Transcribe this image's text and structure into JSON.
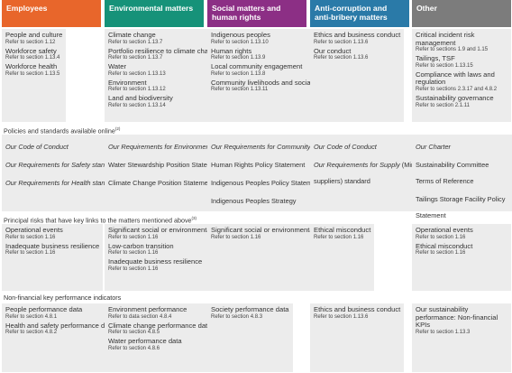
{
  "headers": [
    "Employees",
    "Environmental matters",
    "Social matters and human rights",
    "Anti-corruption and anti-bribery matters",
    "Other"
  ],
  "matters": [
    [
      {
        "title": "People and culture",
        "ref": "Refer to section 1.12"
      },
      {
        "title": "Workforce safety",
        "ref": "Refer to section 1.13.4"
      },
      {
        "title": "Workforce health",
        "ref": "Refer to section 1.13.5"
      }
    ],
    [
      {
        "title": "Climate change",
        "ref": "Refer to section 1.13.7"
      },
      {
        "title": "Portfolio resilience to climate change",
        "ref": "Refer to section 1.13.7"
      },
      {
        "title": "Water",
        "ref": "Refer to section 1.13.13"
      },
      {
        "title": "Environment",
        "ref": "Refer to section 1.13.12"
      },
      {
        "title": "Land and biodiversity",
        "ref": "Refer to section 1.13.14"
      }
    ],
    [
      {
        "title": "Indigenous peoples",
        "ref": "Refer to section 1.13.10"
      },
      {
        "title": "Human rights",
        "ref": "Refer to section 1.13.9"
      },
      {
        "title": "Local community engagement",
        "ref": "Refer to section 1.13.8"
      },
      {
        "title": "Community livelihoods and social investment",
        "ref": "Refer to section 1.13.11"
      }
    ],
    [
      {
        "title": "Ethics and business conduct",
        "ref": "Refer to section 1.13.6"
      },
      {
        "title": "Our conduct",
        "ref": "Refer to section 1.13.6"
      }
    ],
    [
      {
        "title": "Critical incident risk management",
        "ref": "Refer to sections 1.9 and 1.15"
      },
      {
        "title": "Tailings, TSF",
        "ref": "Refer to section 1.13.15"
      },
      {
        "title": "Compliance with laws and regulation",
        "ref": "Refer to sections 2.3.17 and 4.8.2"
      },
      {
        "title": "Sustainability governance",
        "ref": "Refer to section 2.1.11"
      }
    ]
  ],
  "section_policies": "Policies and standards available online",
  "section_policies_sup": "(2)",
  "policies": [
    [
      {
        "text": "Our Code of Conduct",
        "italic": true
      },
      {
        "text": "Our Requirements for Safety standard",
        "italic": true
      },
      {
        "text": "Our Requirements for Health standard",
        "italic": true
      }
    ],
    [
      {
        "text": "Our Requirements for Environment and Climate Change standard",
        "italic": true
      },
      {
        "text": "Water Stewardship Position Statement",
        "italic": false
      },
      {
        "text": "Climate Change Position Statement",
        "italic": false
      }
    ],
    [
      {
        "text": "Our Requirements for Community",
        "italic": true
      },
      {
        "text": "Human Rights Policy Statement",
        "italic": false
      },
      {
        "text": "Indigenous Peoples Policy Statement",
        "italic": false
      },
      {
        "text": "Indigenous Peoples Strategy",
        "italic": false
      }
    ],
    [
      {
        "text": "Our Code of Conduct",
        "italic": true
      },
      {
        "text": "Our Requirements for Supply",
        "italic": true,
        "suffix": " (Minimum requirements for suppliers) standard"
      }
    ],
    [
      {
        "text": "Our Charter",
        "italic": true
      },
      {
        "text": "Sustainability Committee Terms of Reference",
        "italic": false
      },
      {
        "text": "Tailings Storage Facility Policy Statement",
        "italic": false
      }
    ]
  ],
  "section_risks": "Principal risks that have key links to the matters mentioned above",
  "section_risks_sup": "(3)",
  "risks": [
    [
      {
        "title": "Operational events",
        "ref": "Refer to section 1.16"
      },
      {
        "title": "Inadequate business resilience",
        "ref": "Refer to section 1.16"
      }
    ],
    [
      {
        "title": "Significant social or environmental impacts",
        "ref": "Refer to section 1.16"
      },
      {
        "title": "Low-carbon transition",
        "ref": "Refer to section 1.16"
      },
      {
        "title": "Inadequate business resilience",
        "ref": "Refer to section 1.16"
      }
    ],
    [
      {
        "title": "Significant social or environmental impacts",
        "ref": "Refer to section 1.16"
      }
    ],
    [
      {
        "title": "Ethical misconduct",
        "ref": "Refer to section 1.16"
      }
    ],
    [
      {
        "title": "Operational events",
        "ref": "Refer to section 1.16"
      },
      {
        "title": "Ethical misconduct",
        "ref": "Refer to section 1.16"
      }
    ]
  ],
  "section_kpi": "Non-financial key performance indicators",
  "kpis": [
    [
      {
        "title": "People performance data",
        "ref": "Refer to section 4.8.1"
      },
      {
        "title": "Health and safety performance data",
        "ref": "Refer to section 4.8.2"
      }
    ],
    [
      {
        "title": "Environment performance",
        "ref": "Refer to data section 4.8.4"
      },
      {
        "title": "Climate change performance data",
        "ref": "Refer to section 4.8.5"
      },
      {
        "title": "Water performance data",
        "ref": "Refer to section 4.8.6"
      }
    ],
    [
      {
        "title": "Society performance data",
        "ref": "Refer to section 4.8.3"
      }
    ],
    [
      {
        "title": "Ethics and business conduct",
        "ref": "Refer to section 1.13.6"
      }
    ],
    [
      {
        "title": "Our sustainability performance: Non-financial KPIs",
        "ref": "Refer to section 1.13.3"
      }
    ]
  ],
  "colors": {
    "employees": "#e8662b",
    "environmental": "#169279",
    "social": "#8c2f85",
    "anticorruption": "#2a7aa8",
    "other": "#7c7c7c",
    "cell_bg": "#ececec"
  }
}
